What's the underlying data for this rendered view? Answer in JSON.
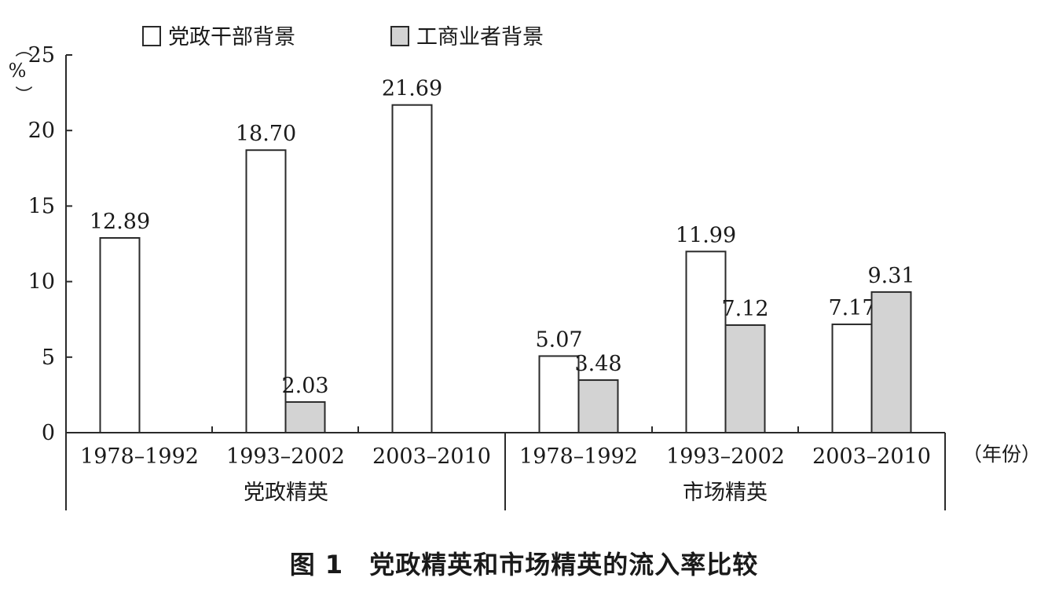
{
  "chart_data": {
    "type": "bar",
    "legend_position": "top",
    "ylabel": "%",
    "xunit": "（年份）",
    "ylim": [
      0,
      25
    ],
    "yticks": [
      "0",
      "5",
      "10",
      "15",
      "20",
      "25"
    ],
    "groups": [
      {
        "name": "党政精英",
        "categories": [
          "1978–1992",
          "1993–2002",
          "2003–2010"
        ]
      },
      {
        "name": "市场精英",
        "categories": [
          "1978–1992",
          "1993–2002",
          "2003–2010"
        ]
      }
    ],
    "series": [
      {
        "name": "党政干部背景",
        "color": "#ffffff",
        "values": [
          12.89,
          18.7,
          21.69,
          5.07,
          11.99,
          7.17
        ],
        "labels": [
          "12.89",
          "18.70",
          "21.69",
          "5.07",
          "11.99",
          "7.17"
        ]
      },
      {
        "name": "工商业者背景",
        "color": "#d3d3d3",
        "values": [
          null,
          2.03,
          null,
          3.48,
          7.12,
          9.31
        ],
        "labels": [
          "",
          "2.03",
          "",
          "3.48",
          "7.12",
          "9.31"
        ]
      }
    ],
    "grid": false
  },
  "caption": "图 1　党政精英和市场精英的流入率比较"
}
